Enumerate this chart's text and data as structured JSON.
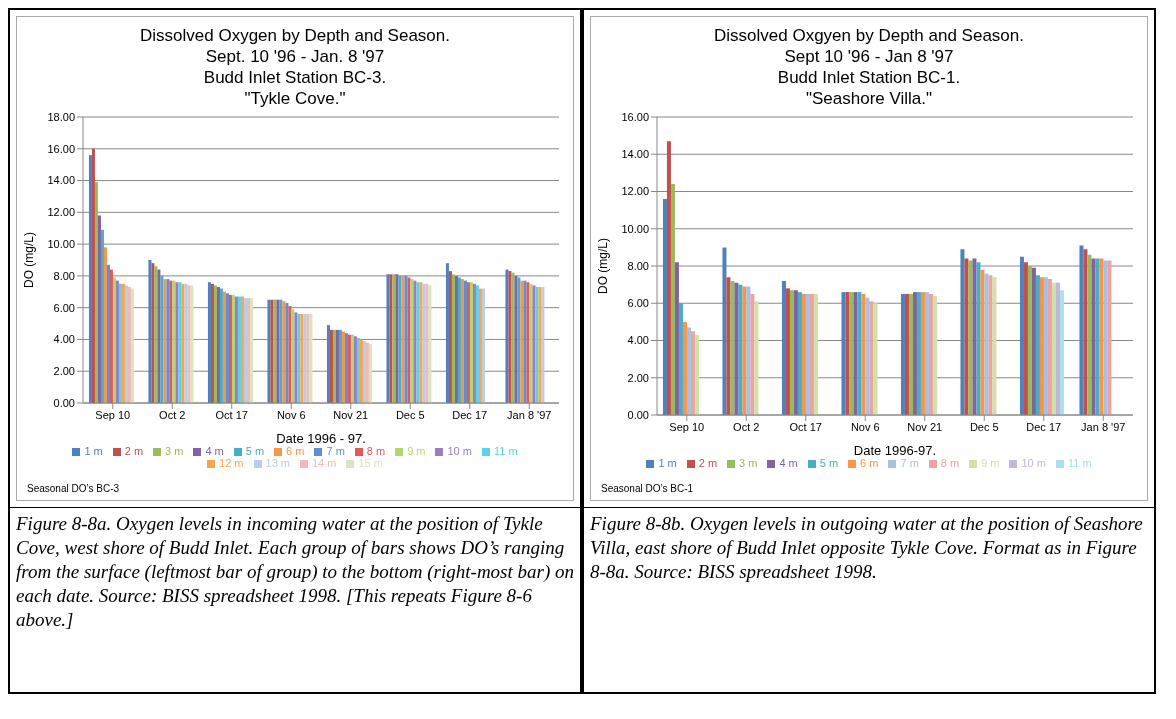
{
  "chart_data": [
    {
      "type": "bar",
      "title": "Dissolved Oxygen by Depth and Season.\nSept. 10 '96 - Jan. 8 '97\nBudd Inlet Station BC-3.\n\"Tykle Cove.\"",
      "xlabel": "Date 1996 - 97.",
      "ylabel": "DO (mg/L)",
      "categories": [
        "Sep 10",
        "Oct 2",
        "Oct 17",
        "Nov 6",
        "Nov 21",
        "Dec 5",
        "Dec 17",
        "Jan 8 '97"
      ],
      "ylim": [
        0,
        18
      ],
      "yticks": [
        {
          "value": 0,
          "label": "0.00"
        },
        {
          "value": 2,
          "label": "2.00"
        },
        {
          "value": 4,
          "label": "4.00"
        },
        {
          "value": 6,
          "label": "6.00"
        },
        {
          "value": 8,
          "label": "8.00"
        },
        {
          "value": 10,
          "label": "10.00"
        },
        {
          "value": 12,
          "label": "12.00"
        },
        {
          "value": 14,
          "label": "14.00"
        },
        {
          "value": 16,
          "label": "16.00"
        },
        {
          "value": 18,
          "label": "18.00"
        }
      ],
      "grid": "y",
      "legend": "bottom",
      "series": [
        {
          "name": "1 m",
          "color": "#4f81bd",
          "values": [
            15.6,
            9.0,
            7.6,
            6.5,
            4.9,
            8.1,
            8.8,
            8.4
          ]
        },
        {
          "name": "2 m",
          "color": "#c0504d",
          "values": [
            16.0,
            8.8,
            7.5,
            6.5,
            4.6,
            8.1,
            8.3,
            8.3
          ]
        },
        {
          "name": "3 m",
          "color": "#9bbb59",
          "values": [
            13.9,
            8.6,
            7.4,
            6.5,
            4.6,
            8.1,
            8.1,
            8.2
          ]
        },
        {
          "name": "4 m",
          "color": "#8064a2",
          "values": [
            11.8,
            8.4,
            7.3,
            6.5,
            4.6,
            8.1,
            8.0,
            8.0
          ]
        },
        {
          "name": "5 m",
          "color": "#4bacc6",
          "values": [
            10.9,
            8.0,
            7.2,
            6.5,
            4.6,
            8.0,
            7.9,
            7.9
          ]
        },
        {
          "name": "6 m",
          "color": "#f79646",
          "values": [
            9.8,
            7.8,
            7.0,
            6.4,
            4.5,
            8.0,
            7.8,
            7.7
          ]
        },
        {
          "name": "7 m",
          "color": "#5b8fd9",
          "values": [
            8.7,
            7.8,
            6.9,
            6.3,
            4.4,
            8.0,
            7.7,
            7.7
          ]
        },
        {
          "name": "8 m",
          "color": "#e05a5a",
          "values": [
            8.4,
            7.7,
            6.8,
            6.1,
            4.3,
            7.9,
            7.6,
            7.6
          ]
        },
        {
          "name": "9 m",
          "color": "#b3d66e",
          "values": [
            7.9,
            7.7,
            6.8,
            5.9,
            4.3,
            7.8,
            7.6,
            7.5
          ]
        },
        {
          "name": "10 m",
          "color": "#9a7fc0",
          "values": [
            7.7,
            7.6,
            6.7,
            5.7,
            4.2,
            7.7,
            7.5,
            7.4
          ]
        },
        {
          "name": "11 m",
          "color": "#5fd0ea",
          "values": [
            7.5,
            7.6,
            6.7,
            5.6,
            4.1,
            7.6,
            7.4,
            7.3
          ]
        },
        {
          "name": "12 m",
          "color": "#f9a54e",
          "values": [
            7.5,
            7.5,
            6.7,
            5.6,
            4.0,
            7.6,
            7.2,
            7.3
          ]
        },
        {
          "name": "13 m",
          "color": "#b9cdea",
          "values": [
            7.4,
            7.5,
            6.6,
            5.6,
            3.9,
            7.5,
            7.2,
            7.3
          ]
        },
        {
          "name": "14 m",
          "color": "#f2b9b8",
          "values": [
            7.3,
            7.4,
            6.6,
            5.6,
            3.8,
            7.5,
            null,
            null
          ]
        },
        {
          "name": "15 m",
          "color": "#d7e6bd",
          "values": [
            7.2,
            7.4,
            6.6,
            5.6,
            3.7,
            7.4,
            null,
            null
          ]
        }
      ],
      "annotations": [
        "Seasonal DO’s BC-3",
        "Figure 8-8a.  Oxygen levels in incoming water at the position of Tykle Cove, west shore of Budd Inlet. Each group of bars shows DO’s ranging from the surface (leftmost bar of group) to the bottom (right-most bar) on each date. Source: BISS spreadsheet 1998. [This repeats Figure 8-6 above.]"
      ]
    },
    {
      "type": "bar",
      "title": "Dissolved Oxgyen by Depth and Season.\nSept 10 '96 - Jan 8 '97\nBudd Inlet Station BC-1.\n\"Seashore Villa.\"",
      "xlabel": "Date 1996-97.",
      "ylabel": "DO (mg/L)",
      "categories": [
        "Sep 10",
        "Oct 2",
        "Oct 17",
        "Nov 6",
        "Nov 21",
        "Dec 5",
        "Dec 17",
        "Jan 8 '97"
      ],
      "ylim": [
        0,
        16
      ],
      "yticks": [
        {
          "value": 0,
          "label": "0.00"
        },
        {
          "value": 2,
          "label": "2.00"
        },
        {
          "value": 4,
          "label": "4.00"
        },
        {
          "value": 6,
          "label": "6.00"
        },
        {
          "value": 8,
          "label": "8.00"
        },
        {
          "value": 10,
          "label": "10.00"
        },
        {
          "value": 12,
          "label": "12.00"
        },
        {
          "value": 14,
          "label": "14.00"
        },
        {
          "value": 16,
          "label": "16.00"
        }
      ],
      "grid": "y",
      "legend": "bottom",
      "series": [
        {
          "name": "1 m",
          "color": "#4f81bd",
          "values": [
            11.6,
            9.0,
            7.2,
            6.6,
            6.5,
            8.9,
            8.5,
            9.1
          ]
        },
        {
          "name": "2 m",
          "color": "#c0504d",
          "values": [
            14.7,
            7.4,
            6.8,
            6.6,
            6.5,
            8.4,
            8.2,
            8.9
          ]
        },
        {
          "name": "3 m",
          "color": "#9bbb59",
          "values": [
            12.4,
            7.2,
            6.7,
            6.6,
            6.5,
            8.3,
            8.0,
            8.6
          ]
        },
        {
          "name": "4 m",
          "color": "#8064a2",
          "values": [
            8.2,
            7.1,
            6.7,
            6.6,
            6.6,
            8.4,
            7.9,
            8.4
          ]
        },
        {
          "name": "5 m",
          "color": "#4bacc6",
          "values": [
            6.0,
            7.0,
            6.6,
            6.6,
            6.6,
            8.2,
            7.5,
            8.4
          ]
        },
        {
          "name": "6 m",
          "color": "#f79646",
          "values": [
            5.0,
            6.9,
            6.5,
            6.5,
            6.6,
            7.8,
            7.4,
            8.4
          ]
        },
        {
          "name": "7 m",
          "color": "#a7c0e6",
          "values": [
            4.7,
            6.9,
            6.5,
            6.3,
            6.6,
            7.6,
            7.4,
            8.3
          ]
        },
        {
          "name": "8 m",
          "color": "#eca3a2",
          "values": [
            4.5,
            6.5,
            6.5,
            6.1,
            6.5,
            7.5,
            7.3,
            8.3
          ]
        },
        {
          "name": "9 m",
          "color": "#cfe3a6",
          "values": [
            4.3,
            6.1,
            6.5,
            6.0,
            6.4,
            7.4,
            7.1,
            null
          ]
        },
        {
          "name": "10 m",
          "color": "#c4b5da",
          "values": [
            null,
            null,
            null,
            null,
            null,
            null,
            7.1,
            null
          ]
        },
        {
          "name": "11 m",
          "color": "#a8e0ee",
          "values": [
            null,
            null,
            null,
            null,
            null,
            null,
            6.7,
            null
          ]
        }
      ],
      "annotations": [
        "Seasonal DO’s BC-1",
        "Figure 8-8b.  Oxygen levels in outgoing water at the position of Seashore Villa, east shore of Budd Inlet opposite Tykle Cove. Format as in Figure 8-8a.  Source: BISS spreadsheet 1998."
      ]
    }
  ]
}
